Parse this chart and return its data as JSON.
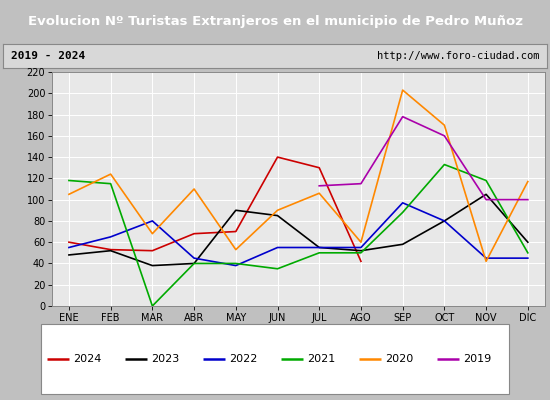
{
  "title": "Evolucion Nº Turistas Extranjeros en el municipio de Pedro Muñoz",
  "subtitle_left": "2019 - 2024",
  "subtitle_right": "http://www.foro-ciudad.com",
  "months": [
    "ENE",
    "FEB",
    "MAR",
    "ABR",
    "MAY",
    "JUN",
    "JUL",
    "AGO",
    "SEP",
    "OCT",
    "NOV",
    "DIC"
  ],
  "series": {
    "2024": [
      60,
      53,
      52,
      68,
      70,
      140,
      130,
      42,
      null,
      null,
      null,
      null
    ],
    "2023": [
      48,
      52,
      38,
      40,
      90,
      85,
      55,
      52,
      58,
      80,
      105,
      60
    ],
    "2022": [
      55,
      65,
      80,
      45,
      38,
      55,
      55,
      55,
      97,
      80,
      45,
      45
    ],
    "2021": [
      118,
      115,
      0,
      40,
      40,
      35,
      50,
      50,
      88,
      133,
      118,
      50
    ],
    "2020": [
      105,
      124,
      68,
      110,
      53,
      90,
      106,
      60,
      203,
      170,
      42,
      117
    ],
    "2019": [
      null,
      null,
      null,
      null,
      null,
      null,
      113,
      115,
      178,
      160,
      100,
      100
    ]
  },
  "colors": {
    "2024": "#cc0000",
    "2023": "#000000",
    "2022": "#0000cc",
    "2021": "#00aa00",
    "2020": "#ff8800",
    "2019": "#aa00aa"
  },
  "ylim": [
    0,
    220
  ],
  "yticks": [
    0,
    20,
    40,
    60,
    80,
    100,
    120,
    140,
    160,
    180,
    200,
    220
  ],
  "title_bg": "#4472c4",
  "title_color": "#ffffff",
  "subtitle_bg": "#d8d8d8",
  "plot_bg": "#e8e8e8",
  "grid_color": "#ffffff",
  "years_order": [
    "2024",
    "2023",
    "2022",
    "2021",
    "2020",
    "2019"
  ]
}
